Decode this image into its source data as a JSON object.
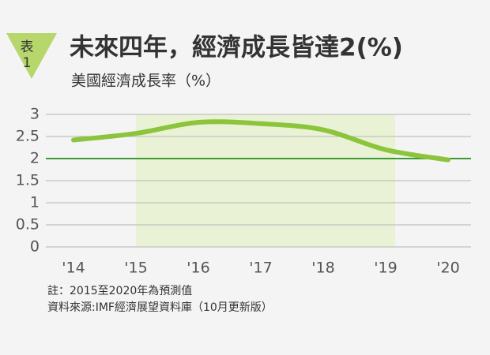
{
  "badge": {
    "label": "表",
    "number": "1"
  },
  "chart_data": {
    "type": "line",
    "title": "未來四年，經濟成長皆達2(%)",
    "subtitle": "美國經濟成長率（%）",
    "categories": [
      "'14",
      "'15",
      "'16",
      "'17",
      "'18",
      "'19",
      "'20"
    ],
    "values": [
      2.42,
      2.57,
      2.82,
      2.79,
      2.65,
      2.2,
      1.97
    ],
    "color": "#8cc43c",
    "ylim": [
      0,
      3
    ],
    "yticks": [
      0,
      0.5,
      1,
      1.5,
      2,
      2.5,
      3
    ],
    "grid": true,
    "reference_line": 2,
    "reference_color": "#3c9a32",
    "shaded_x": [
      "'15",
      "'19"
    ],
    "shade_color": "#eaf2d6",
    "notes": [
      "註：2015至2020年為預測值",
      "資料來源:IMF經濟展望資料庫（10月更新版）"
    ]
  }
}
